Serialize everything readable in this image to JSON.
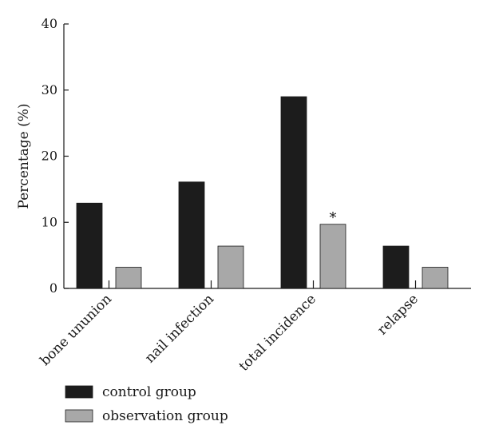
{
  "chart_data": {
    "type": "bar",
    "title": "",
    "xlabel": "",
    "ylabel": "Percentage (%)",
    "ylim": [
      0,
      40
    ],
    "yticks": [
      0,
      10,
      20,
      30,
      40
    ],
    "categories": [
      "bone ununion",
      "nail infection",
      "total incidence",
      "relapse"
    ],
    "series": [
      {
        "name": "control group",
        "values": [
          12.9,
          16.1,
          29.0,
          6.4
        ],
        "color": "#1c1c1c"
      },
      {
        "name": "observation group",
        "values": [
          3.2,
          6.4,
          9.7,
          3.2
        ],
        "color": "#a8a8a8"
      }
    ],
    "annotations": [
      {
        "text": "*",
        "category_index": 2,
        "series_index": 1
      }
    ],
    "grid": false,
    "legend_position": "bottom-left"
  }
}
